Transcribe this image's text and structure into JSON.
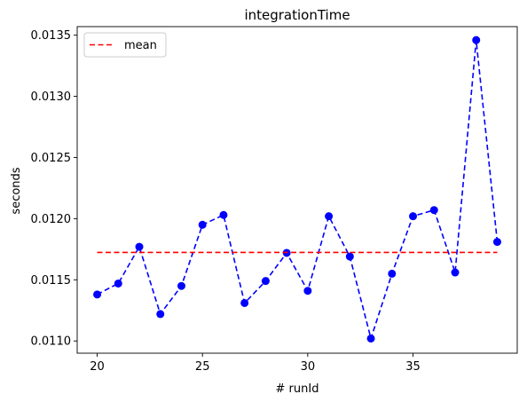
{
  "chart_data": {
    "type": "line",
    "title": "integrationTime",
    "xlabel": "# runId",
    "ylabel": "seconds",
    "xlim": [
      19.05,
      39.95
    ],
    "ylim": [
      0.0109,
      0.01357
    ],
    "xticks": [
      20,
      25,
      30,
      35
    ],
    "yticks": [
      0.011,
      0.0115,
      0.012,
      0.0125,
      0.013,
      0.0135
    ],
    "ytick_labels": [
      "0.0110",
      "0.0115",
      "0.0120",
      "0.0125",
      "0.0130",
      "0.0135"
    ],
    "grid": false,
    "legend_position": "top-left",
    "series": [
      {
        "name": "",
        "style": "dashed-markers",
        "color": "#0000ff",
        "x": [
          20,
          21,
          22,
          23,
          24,
          25,
          26,
          27,
          28,
          29,
          30,
          31,
          32,
          33,
          34,
          35,
          36,
          37,
          38,
          39
        ],
        "values": [
          0.01138,
          0.01147,
          0.01177,
          0.01122,
          0.01145,
          0.01195,
          0.01203,
          0.01131,
          0.01149,
          0.01172,
          0.01141,
          0.01202,
          0.01169,
          0.01102,
          0.01155,
          0.01202,
          0.01207,
          0.01156,
          0.01346,
          0.01181
        ]
      },
      {
        "name": "mean",
        "style": "dashed",
        "color": "#ff0000",
        "x": [
          20,
          39
        ],
        "values": [
          0.011724,
          0.011724
        ]
      }
    ]
  }
}
